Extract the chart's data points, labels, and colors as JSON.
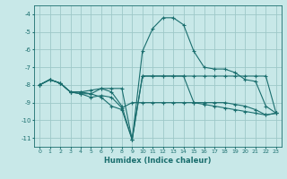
{
  "xlabel": "Humidex (Indice chaleur)",
  "xlim": [
    -0.5,
    23.5
  ],
  "ylim": [
    -11.5,
    -3.5
  ],
  "yticks": [
    -11,
    -10,
    -9,
    -8,
    -7,
    -6,
    -5,
    -4
  ],
  "xticks": [
    0,
    1,
    2,
    3,
    4,
    5,
    6,
    7,
    8,
    9,
    10,
    11,
    12,
    13,
    14,
    15,
    16,
    17,
    18,
    19,
    20,
    21,
    22,
    23
  ],
  "bg_color": "#c8e8e8",
  "grid_color": "#9ec8c8",
  "line_color": "#1a6e6e",
  "lines": [
    {
      "x": [
        0,
        1,
        2,
        3,
        4,
        5,
        6,
        7,
        8,
        9,
        10,
        11,
        12,
        13,
        14,
        15,
        16,
        17,
        18,
        19,
        20,
        21,
        22,
        23
      ],
      "y": [
        -8.0,
        -7.7,
        -7.9,
        -8.4,
        -8.4,
        -8.3,
        -8.2,
        -8.2,
        -8.2,
        -11.1,
        -7.5,
        -7.5,
        -7.5,
        -7.5,
        -7.5,
        -7.5,
        -7.5,
        -7.5,
        -7.5,
        -7.5,
        -7.5,
        -7.5,
        -7.5,
        -9.6
      ]
    },
    {
      "x": [
        0,
        1,
        2,
        3,
        4,
        5,
        6,
        7,
        8,
        9,
        10,
        11,
        12,
        13,
        14,
        15,
        16,
        17,
        18,
        19,
        20,
        21,
        22,
        23
      ],
      "y": [
        -8.0,
        -7.7,
        -7.9,
        -8.4,
        -8.5,
        -8.5,
        -8.7,
        -9.2,
        -9.4,
        -11.1,
        -6.1,
        -4.8,
        -4.2,
        -4.2,
        -4.6,
        -6.1,
        -7.0,
        -7.1,
        -7.1,
        -7.3,
        -7.7,
        -7.8,
        -9.2,
        -9.6
      ]
    },
    {
      "x": [
        0,
        1,
        2,
        3,
        4,
        5,
        6,
        7,
        8,
        9,
        10,
        11,
        12,
        13,
        14,
        15,
        16,
        17,
        18,
        19,
        20,
        21,
        22,
        23
      ],
      "y": [
        -8.0,
        -7.7,
        -7.9,
        -8.4,
        -8.5,
        -8.7,
        -8.6,
        -8.7,
        -9.3,
        -9.0,
        -9.0,
        -9.0,
        -9.0,
        -9.0,
        -9.0,
        -9.0,
        -9.0,
        -9.0,
        -9.0,
        -9.1,
        -9.2,
        -9.4,
        -9.7,
        -9.6
      ]
    },
    {
      "x": [
        0,
        1,
        2,
        3,
        4,
        5,
        6,
        7,
        8,
        9,
        10,
        11,
        12,
        13,
        14,
        15,
        16,
        17,
        18,
        19,
        20,
        21,
        22,
        23
      ],
      "y": [
        -8.0,
        -7.7,
        -7.9,
        -8.4,
        -8.4,
        -8.5,
        -8.2,
        -8.4,
        -9.2,
        -11.1,
        -7.5,
        -7.5,
        -7.5,
        -7.5,
        -7.5,
        -9.0,
        -9.1,
        -9.2,
        -9.3,
        -9.4,
        -9.5,
        -9.6,
        -9.7,
        -9.6
      ]
    }
  ]
}
